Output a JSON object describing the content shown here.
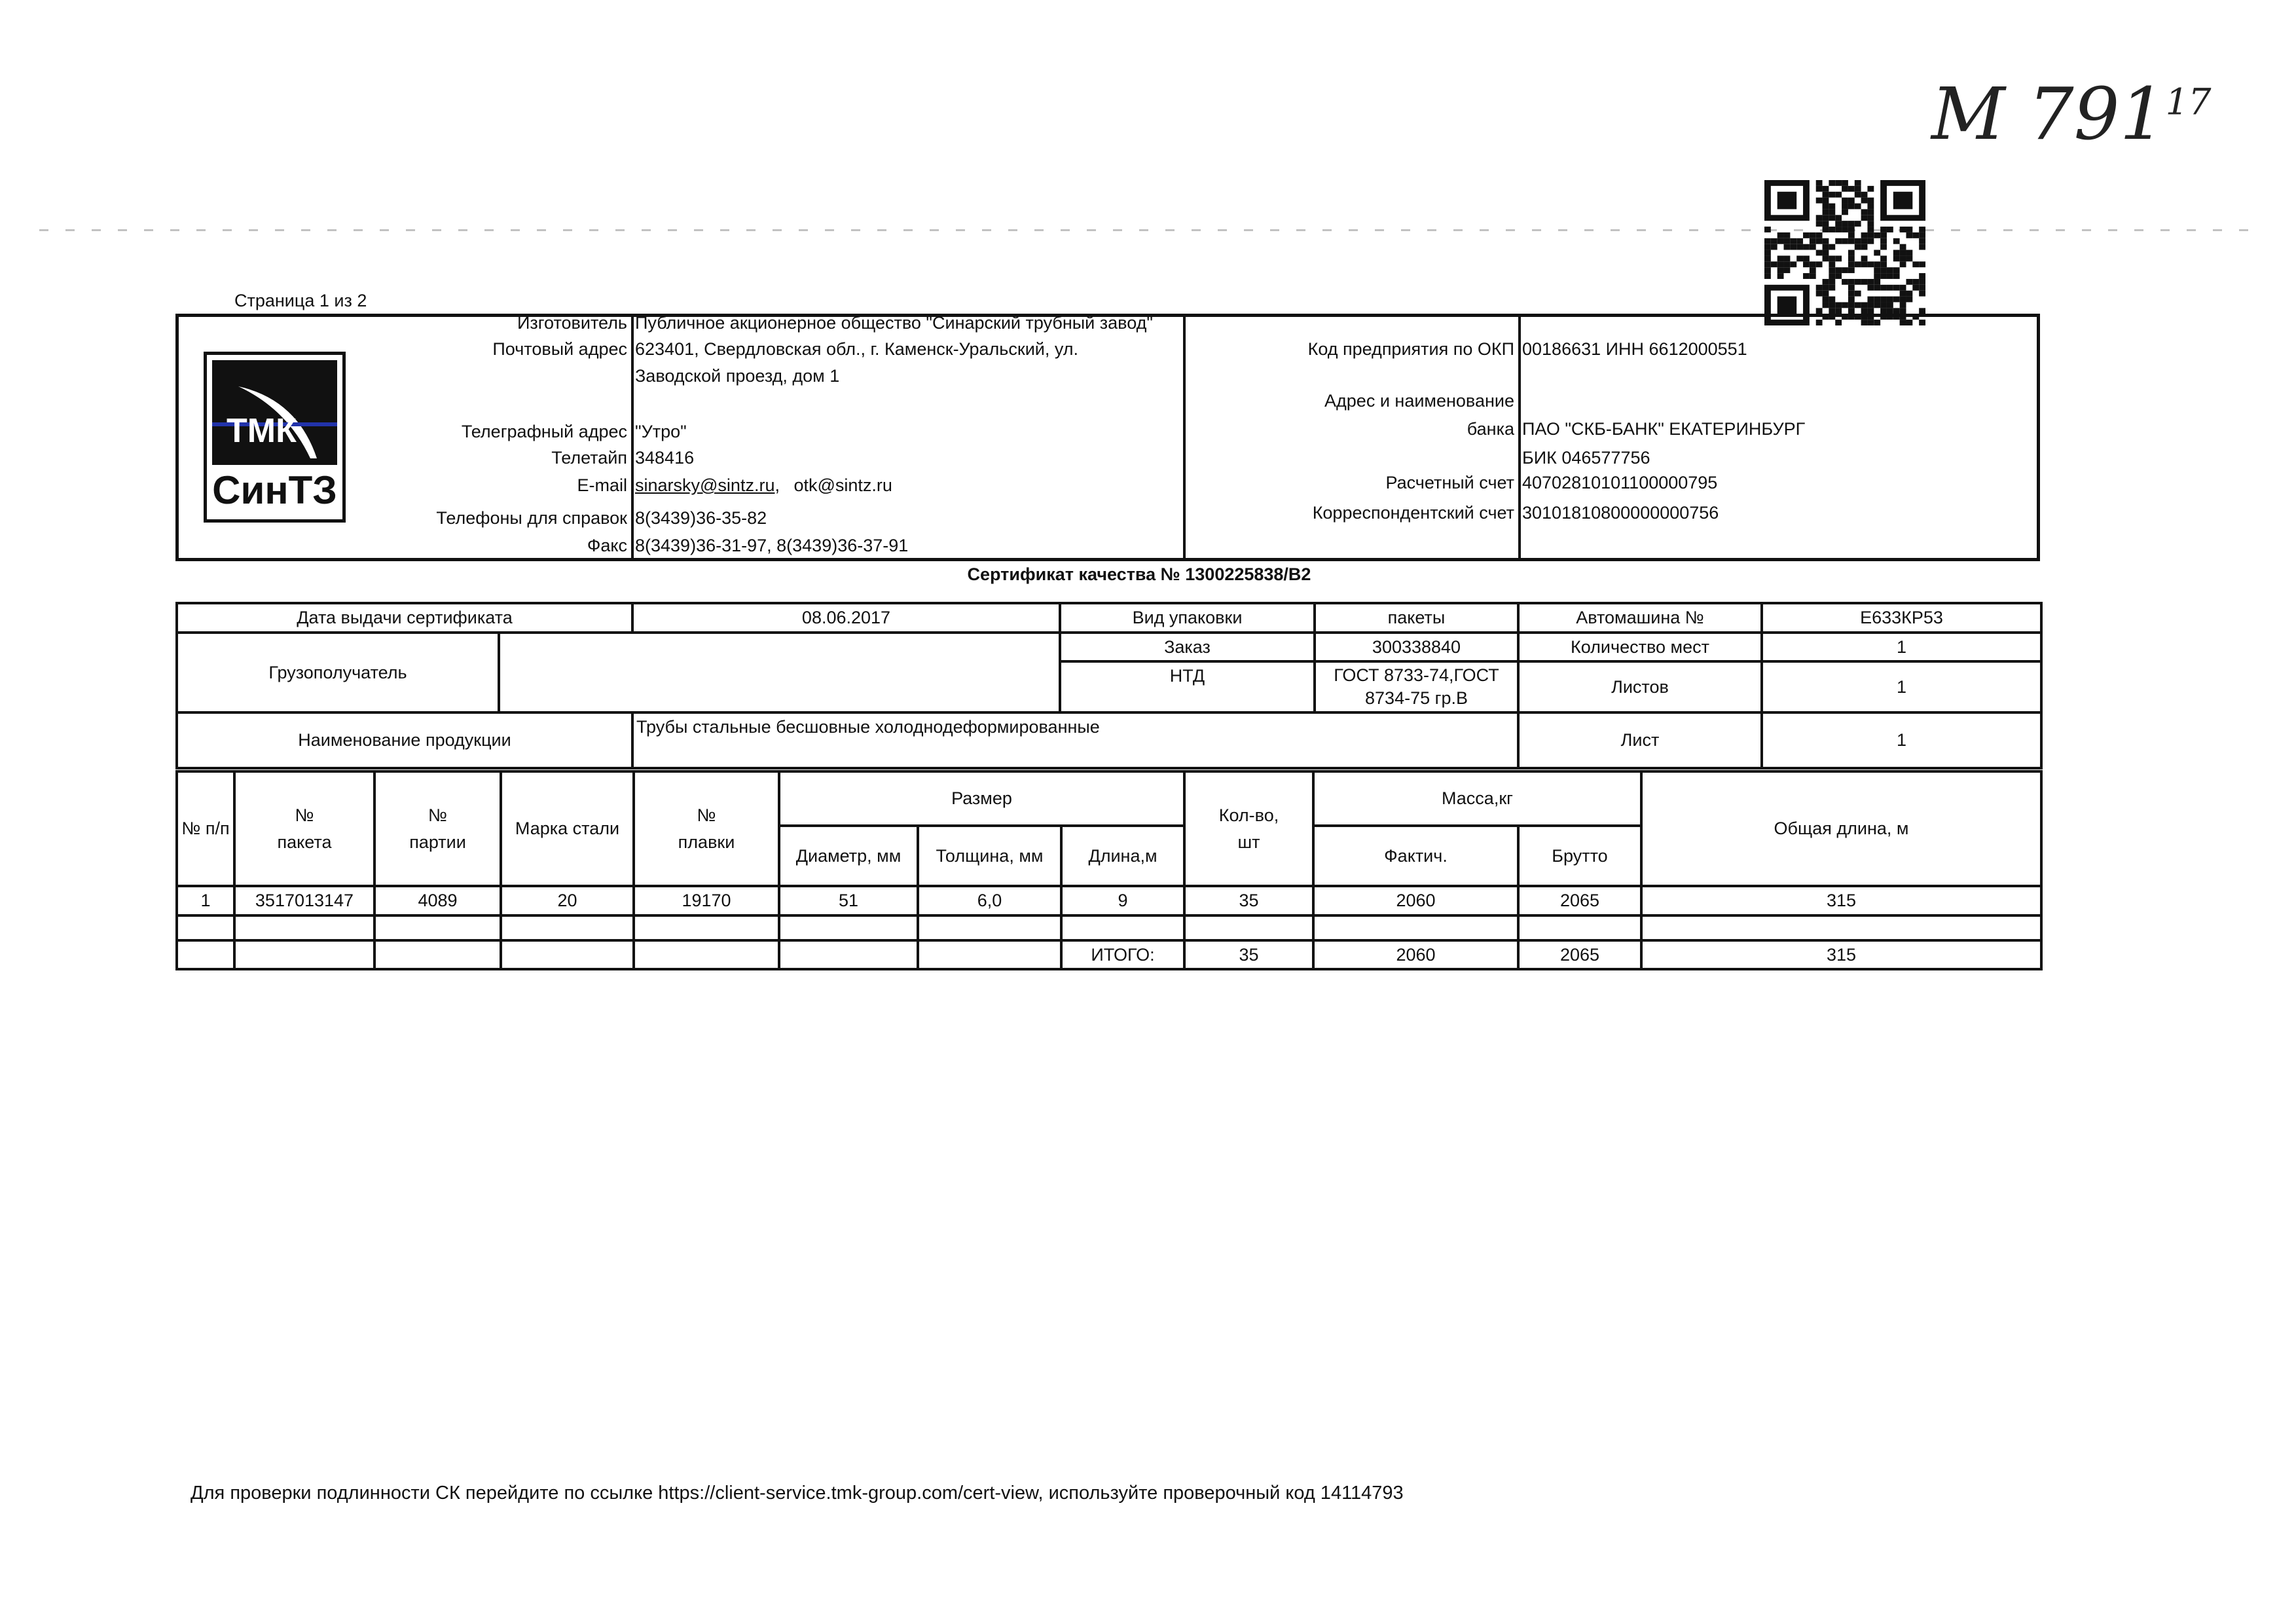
{
  "page_indicator": "Страница 1 из 2",
  "handwritten_note": "М 791",
  "handwritten_sup": "17",
  "logo": {
    "top_text": "ТМК",
    "bottom_text": "СинТЗ"
  },
  "manufacturer": {
    "rows": [
      {
        "label": "Изготовитель",
        "value": "Публичное акционерное общество \"Синарский трубный завод\""
      },
      {
        "label": "Почтовый адрес",
        "value": "623401, Свердловская обл., г. Каменск-Уральский, ул."
      },
      {
        "label": "",
        "value": "Заводской проезд, дом 1"
      },
      {
        "label": "Телеграфный адрес",
        "value": "\"Утро\""
      },
      {
        "label": "Телетайп",
        "value": "348416"
      },
      {
        "label": "E-mail",
        "value": "sinarsky@sintz.ru",
        "value2": "otk@sintz.ru"
      },
      {
        "label": "Телефоны для справок",
        "value": "8(3439)36-35-82"
      },
      {
        "label": "Факс",
        "value": "8(3439)36-31-97, 8(3439)36-37-91"
      }
    ]
  },
  "bank": {
    "rows": [
      {
        "label": "Код предприятия по ОКП",
        "value": "00186631 ИНН 6612000551"
      },
      {
        "label": "Адрес и наименование",
        "value": ""
      },
      {
        "label": "банка",
        "value": "ПАО \"СКБ-БАНК\" ЕКАТЕРИНБУРГ"
      },
      {
        "label": "",
        "value": "БИК 046577756"
      },
      {
        "label": "Расчетный счет",
        "value": "40702810101100000795"
      },
      {
        "label": "Корреспондентский счет",
        "value": "30101810800000000756"
      }
    ]
  },
  "certificate_title": "Сертификат качества №  1300225838/В2",
  "info": {
    "issue_date_label": "Дата выдачи сертификата",
    "issue_date": "08.06.2017",
    "packaging_label": "Вид упаковки",
    "packaging": "пакеты",
    "vehicle_label": "Автомашина №",
    "vehicle": "Е633КР53",
    "consignee_label": "Грузополучатель",
    "consignee": "",
    "order_label": "Заказ",
    "order": "300338840",
    "places_label": "Количество мест",
    "places": "1",
    "ntd_label": "НТД",
    "ntd": "ГОСТ 8733-74,ГОСТ 8734-75 гр.В",
    "sheets_label": "Листов",
    "sheets": "1",
    "product_label": "Наименование продукции",
    "product": "Трубы стальные бесшовные холоднодеформированные",
    "sheet_label": "Лист",
    "sheet": "1"
  },
  "items": {
    "headers": {
      "num": "№ п/п",
      "package": "№ пакета",
      "batch": "№ партии",
      "steel": "Марка стали",
      "melt": "№ плавки",
      "size": "Размер",
      "diameter": "Диаметр, мм",
      "thickness": "Толщина, мм",
      "length": "Длина,м",
      "qty": "Кол-во, шт",
      "mass": "Масса,кг",
      "actual": "Фактич.",
      "gross": "Брутто",
      "total_length": "Общая длина, м"
    },
    "rows": [
      {
        "num": "1",
        "package": "3517013147",
        "batch": "4089",
        "steel": "20",
        "melt": "19170",
        "diameter": "51",
        "thickness": "6,0",
        "length": "9",
        "qty": "35",
        "actual": "2060",
        "gross": "2065",
        "total_length": "315"
      }
    ],
    "total": {
      "label": "ИТОГО:",
      "qty": "35",
      "actual": "2060",
      "gross": "2065",
      "total_length": "315"
    }
  },
  "footer": "Для проверки подлинности СК перейдите по ссылке https://client-service.tmk-group.com/cert-view, используйте проверочный код 14114793"
}
